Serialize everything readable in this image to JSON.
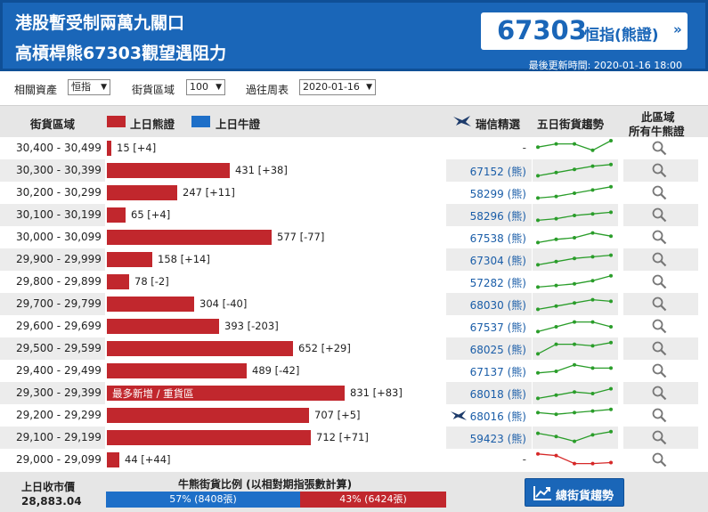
{
  "header": {
    "title_line1": "港股暫受制兩萬九關口",
    "title_line2": "高槓桿熊67303觀望遇阻力",
    "badge_number": "67303",
    "badge_label": "恒指(熊證)",
    "badge_arrow": "»",
    "updated": "最後更新時間: 2020-01-16 18:00"
  },
  "filters": {
    "asset_label": "相關資產",
    "asset_value": "恒指",
    "zone_label": "街貨區域",
    "zone_value": "100",
    "week_label": "過往周表",
    "week_value": "2020-01-16"
  },
  "columns": {
    "zone": "街貨區域",
    "bear_legend": "上日熊證",
    "bull_legend": "上日牛證",
    "pick": "瑞信精選",
    "trend": "五日街貨趨勢",
    "all_line1": "此區域",
    "all_line2": "所有牛熊證"
  },
  "colors": {
    "bear": "#c1272d",
    "bull": "#1e6fc8",
    "trend_up": "#2a9d2a",
    "trend_down": "#d62828"
  },
  "rows": [
    {
      "range": "30,400 - 30,499",
      "value": 15,
      "label": "15 [+4]",
      "code": "-",
      "trend": [
        3,
        4,
        4,
        2,
        5
      ],
      "trend_color": "green"
    },
    {
      "range": "30,300 - 30,399",
      "value": 431,
      "label": "431 [+38]",
      "code": "67152 (熊)",
      "trend": [
        1,
        2,
        3,
        4,
        4.5
      ],
      "trend_color": "green"
    },
    {
      "range": "30,200 - 30,299",
      "value": 247,
      "label": "247 [+11]",
      "code": "58299 (熊)",
      "trend": [
        1,
        1.5,
        2.5,
        3.5,
        4.5
      ],
      "trend_color": "green"
    },
    {
      "range": "30,100 - 30,199",
      "value": 65,
      "label": "65 [+4]",
      "code": "58296 (熊)",
      "trend": [
        1,
        1.5,
        2.5,
        3,
        3.5
      ],
      "trend_color": "green"
    },
    {
      "range": "30,000 - 30,099",
      "value": 577,
      "label": "577 [-77]",
      "code": "67538 (熊)",
      "trend": [
        1,
        2,
        2.5,
        4,
        3
      ],
      "trend_color": "green"
    },
    {
      "range": "29,900 - 29,999",
      "value": 158,
      "label": "158 [+14]",
      "code": "67304 (熊)",
      "trend": [
        1,
        2,
        3,
        3.5,
        4
      ],
      "trend_color": "green"
    },
    {
      "range": "29,800 - 29,899",
      "value": 78,
      "label": "78 [-2]",
      "code": "57282 (熊)",
      "trend": [
        1,
        1.5,
        2,
        3,
        4.5
      ],
      "trend_color": "green"
    },
    {
      "range": "29,700 - 29,799",
      "value": 304,
      "label": "304 [-40]",
      "code": "68030 (熊)",
      "trend": [
        1,
        2,
        3,
        4,
        3.5
      ],
      "trend_color": "green"
    },
    {
      "range": "29,600 - 29,699",
      "value": 393,
      "label": "393 [-203]",
      "code": "67537 (熊)",
      "trend": [
        1,
        2.5,
        4,
        4,
        2.5
      ],
      "trend_color": "green"
    },
    {
      "range": "29,500 - 29,599",
      "value": 652,
      "label": "652 [+29]",
      "code": "68025 (熊)",
      "trend": [
        1,
        4,
        4,
        3.5,
        4.5
      ],
      "trend_color": "green"
    },
    {
      "range": "29,400 - 29,499",
      "value": 489,
      "label": "489 [-42]",
      "code": "67137 (熊)",
      "trend": [
        2,
        2.5,
        4.5,
        3.5,
        3.5
      ],
      "trend_color": "green"
    },
    {
      "range": "29,300 - 29,399",
      "value": 831,
      "label": "831 [+83]",
      "inner_label": "最多新增 / 重貨區",
      "code": "68018 (熊)",
      "trend": [
        1,
        2,
        3,
        2.5,
        4
      ],
      "trend_color": "green"
    },
    {
      "range": "29,200 - 29,299",
      "value": 707,
      "label": "707 [+5]",
      "code": "68016 (熊)",
      "pick_icon": "bird-icon",
      "trend": [
        3.5,
        3,
        3.5,
        4,
        4.5
      ],
      "trend_color": "green"
    },
    {
      "range": "29,100 - 29,199",
      "value": 712,
      "label": "712 [+71]",
      "code": "59423 (熊)",
      "trend": [
        4,
        3,
        1.5,
        3.5,
        4.5
      ],
      "trend_color": "green"
    },
    {
      "range": "29,000 - 29,099",
      "value": 44,
      "label": "44 [+44]",
      "code": "-",
      "trend": [
        4.5,
        4,
        1.5,
        1.5,
        1.8
      ],
      "trend_color": "red"
    }
  ],
  "footer": {
    "close_label": "上日收市價",
    "close_value": "28,883.04",
    "ratio_title": "牛熊街貨比例 (以相對期指張數計算)",
    "bull_pct": 57,
    "bull_label": "57% (8408張)",
    "bear_pct": 43,
    "bear_label": "43% (6424張)",
    "trend_button": "總街貨趨勢"
  }
}
